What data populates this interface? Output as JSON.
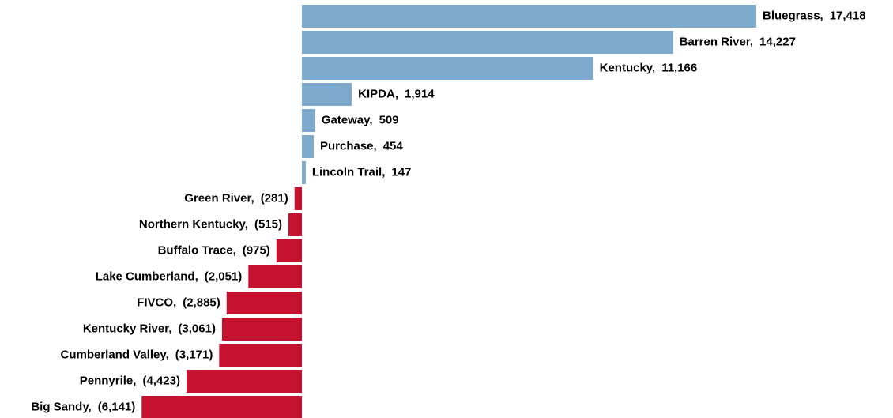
{
  "chart_data": {
    "type": "bar",
    "orientation": "horizontal",
    "categories": [
      "Bluegrass,",
      "Barren River,",
      "Kentucky,",
      "KIPDA,",
      "Gateway,",
      "Purchase,",
      "Lincoln Trail,",
      "Green River,",
      "Northern Kentucky,",
      "Buffalo Trace,",
      "Lake Cumberland,",
      "FIVCO,",
      "Kentucky River,",
      "Cumberland Valley,",
      "Pennyrile,",
      "Big Sandy,"
    ],
    "values": [
      17418,
      14227,
      11166,
      1914,
      509,
      454,
      147,
      -281,
      -515,
      -975,
      -2051,
      -2885,
      -3061,
      -3171,
      -4423,
      -6141
    ],
    "value_labels": [
      "17,418",
      "14,227",
      "11,166",
      "1,914",
      "509",
      "454",
      "147",
      "(281)",
      "(515)",
      "(975)",
      "(2,051)",
      "(2,885)",
      "(3,061)",
      "(3,171)",
      "(4,423)",
      "(6,141)"
    ],
    "positive_color": "#7eaacd",
    "negative_color": "#c41230"
  }
}
